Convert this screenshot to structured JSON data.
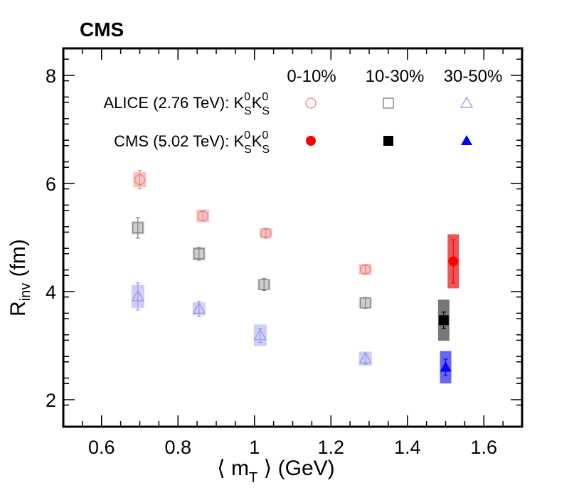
{
  "experiment_label": "CMS",
  "chart_data": {
    "type": "scatter",
    "xlabel": "⟨ m_T ⟩ (GeV)",
    "ylabel": "R_inv (fm)",
    "xlim": [
      0.5,
      1.7
    ],
    "ylim": [
      1.5,
      8.5
    ],
    "x_ticks": [
      0.6,
      0.8,
      1,
      1.2,
      1.4,
      1.6
    ],
    "y_ticks": [
      2,
      4,
      6,
      8
    ],
    "x_tick_labels": [
      "0.6",
      "0.8",
      "1",
      "1.2",
      "1.4",
      "1.6"
    ],
    "y_tick_labels": [
      "2",
      "4",
      "6",
      "8"
    ],
    "legend": {
      "placement": "top",
      "column_headers": [
        "0-10%",
        "10-30%",
        "30-50%"
      ],
      "rows": [
        {
          "label": "ALICE (2.76 TeV): K",
          "sup1": "0",
          "sub1": "S",
          "mid": "K",
          "sup2": "0",
          "sub2": "S"
        },
        {
          "label": "CMS (5.02 TeV): K",
          "sup1": "0",
          "sub1": "S",
          "mid": "K",
          "sup2": "0",
          "sub2": "S"
        }
      ]
    },
    "colors": {
      "alice_0_10": "#f08080",
      "alice_10_30": "#808080",
      "alice_30_50": "#9999ee",
      "alice_box_0_10": "#f7b8b8",
      "alice_box_10_30": "#c4c4c4",
      "alice_box_30_50": "#c6c6f4",
      "cms_0_10": "#ff0000",
      "cms_10_30": "#000000",
      "cms_30_50": "#0000ff",
      "cms_box_0_10": "#ee5555",
      "cms_box_10_30": "#777777",
      "cms_box_30_50": "#6666ee"
    },
    "series": [
      {
        "key": "alice_0_10",
        "centrality": "0-10%",
        "experiment": "ALICE",
        "marker": "circle-open",
        "x": [
          0.7,
          0.865,
          1.03,
          1.29
        ],
        "y": [
          6.07,
          5.4,
          5.08,
          4.41
        ],
        "stat_err": [
          0.17,
          0.08,
          0.07,
          0.07
        ],
        "syst_err": [
          0.14,
          0.12,
          0.09,
          0.1
        ]
      },
      {
        "key": "alice_10_30",
        "centrality": "10-30%",
        "experiment": "ALICE",
        "marker": "square-open",
        "x": [
          0.695,
          0.855,
          1.025,
          1.29
        ],
        "y": [
          5.18,
          4.7,
          4.13,
          3.79
        ],
        "stat_err": [
          0.19,
          0.12,
          0.11,
          0.1
        ],
        "syst_err": [
          0.12,
          0.12,
          0.1,
          0.1
        ]
      },
      {
        "key": "alice_30_50",
        "centrality": "30-50%",
        "experiment": "ALICE",
        "marker": "triangle-open",
        "x": [
          0.695,
          0.855,
          1.015,
          1.29
        ],
        "y": [
          3.91,
          3.68,
          3.19,
          2.76
        ],
        "stat_err": [
          0.25,
          0.14,
          0.13,
          0.1
        ],
        "syst_err": [
          0.21,
          0.12,
          0.2,
          0.13
        ]
      },
      {
        "key": "cms_0_10",
        "centrality": "0-10%",
        "experiment": "CMS",
        "marker": "circle-filled",
        "x": [
          1.52
        ],
        "y": [
          4.56
        ],
        "stat_err": [
          0.4
        ],
        "syst_err": [
          0.5
        ]
      },
      {
        "key": "cms_10_30",
        "centrality": "10-30%",
        "experiment": "CMS",
        "marker": "square-filled",
        "x": [
          1.495
        ],
        "y": [
          3.47
        ],
        "stat_err": [
          0.15
        ],
        "syst_err": [
          0.38
        ]
      },
      {
        "key": "cms_30_50",
        "centrality": "30-50%",
        "experiment": "CMS",
        "marker": "triangle-filled",
        "x": [
          1.5
        ],
        "y": [
          2.6
        ],
        "stat_err": [
          0.15
        ],
        "syst_err": [
          0.3
        ]
      }
    ]
  }
}
